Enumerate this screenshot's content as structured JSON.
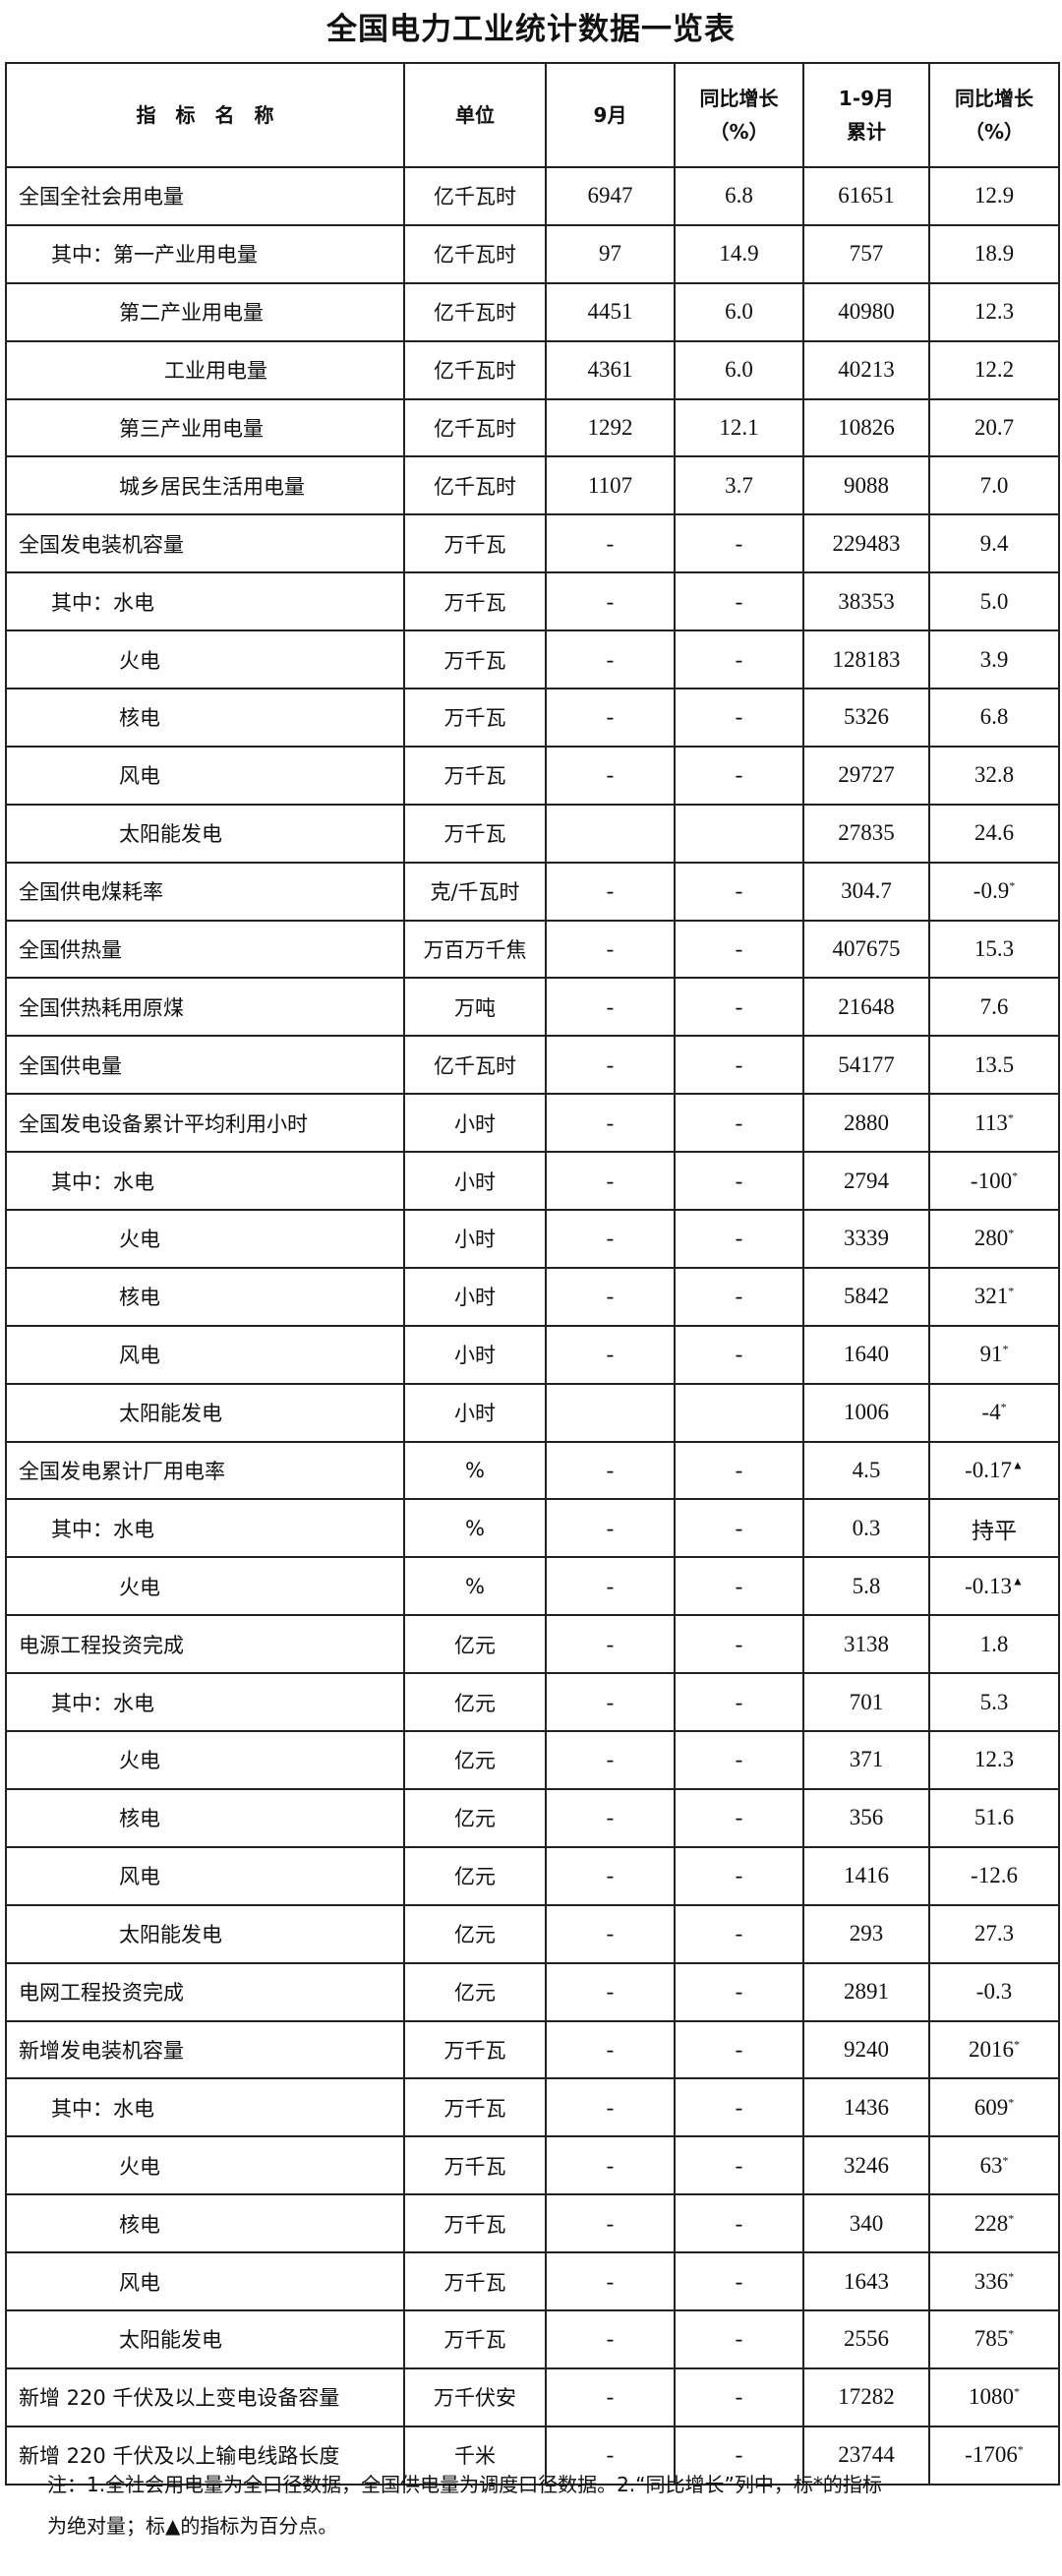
{
  "title": "全国电力工业统计数据一览表",
  "headers": {
    "name": "指　标　名　称",
    "unit": "单位",
    "month": "9月",
    "month_yoy_1": "同比增长",
    "month_yoy_2": "（%）",
    "cum_1": "1-9月",
    "cum_2": "累计",
    "cum_yoy_1": "同比增长",
    "cum_yoy_2": "（%）"
  },
  "rows": [
    {
      "name": "全国全社会用电量",
      "indent": 0,
      "unit": "亿千瓦时",
      "m": "6947",
      "my": "6.8",
      "c": "61651",
      "cy": "12.9",
      "mark": ""
    },
    {
      "name": "其中：第一产业用电量",
      "indent": 1,
      "unit": "亿千瓦时",
      "m": "97",
      "my": "14.9",
      "c": "757",
      "cy": "18.9",
      "mark": ""
    },
    {
      "name": "第二产业用电量",
      "indent": 2,
      "unit": "亿千瓦时",
      "m": "4451",
      "my": "6.0",
      "c": "40980",
      "cy": "12.3",
      "mark": ""
    },
    {
      "name": "工业用电量",
      "indent": 3,
      "unit": "亿千瓦时",
      "m": "4361",
      "my": "6.0",
      "c": "40213",
      "cy": "12.2",
      "mark": ""
    },
    {
      "name": "第三产业用电量",
      "indent": 2,
      "unit": "亿千瓦时",
      "m": "1292",
      "my": "12.1",
      "c": "10826",
      "cy": "20.7",
      "mark": ""
    },
    {
      "name": "城乡居民生活用电量",
      "indent": 2,
      "unit": "亿千瓦时",
      "m": "1107",
      "my": "3.7",
      "c": "9088",
      "cy": "7.0",
      "mark": ""
    },
    {
      "name": "全国发电装机容量",
      "indent": 0,
      "unit": "万千瓦",
      "m": "-",
      "my": "-",
      "c": "229483",
      "cy": "9.4",
      "mark": ""
    },
    {
      "name": "其中：水电",
      "indent": 1,
      "unit": "万千瓦",
      "m": "-",
      "my": "-",
      "c": "38353",
      "cy": "5.0",
      "mark": ""
    },
    {
      "name": "火电",
      "indent": 2,
      "unit": "万千瓦",
      "m": "-",
      "my": "-",
      "c": "128183",
      "cy": "3.9",
      "mark": ""
    },
    {
      "name": "核电",
      "indent": 2,
      "unit": "万千瓦",
      "m": "-",
      "my": "-",
      "c": "5326",
      "cy": "6.8",
      "mark": ""
    },
    {
      "name": "风电",
      "indent": 2,
      "unit": "万千瓦",
      "m": "-",
      "my": "-",
      "c": "29727",
      "cy": "32.8",
      "mark": ""
    },
    {
      "name": "太阳能发电",
      "indent": 2,
      "unit": "万千瓦",
      "m": "",
      "my": "",
      "c": "27835",
      "cy": "24.6",
      "mark": ""
    },
    {
      "name": "全国供电煤耗率",
      "indent": 0,
      "unit": "克/千瓦时",
      "m": "-",
      "my": "-",
      "c": "304.7",
      "cy": "-0.9",
      "mark": "*"
    },
    {
      "name": "全国供热量",
      "indent": 0,
      "unit": "万百万千焦",
      "m": "-",
      "my": "-",
      "c": "407675",
      "cy": "15.3",
      "mark": ""
    },
    {
      "name": "全国供热耗用原煤",
      "indent": 0,
      "unit": "万吨",
      "m": "-",
      "my": "-",
      "c": "21648",
      "cy": "7.6",
      "mark": ""
    },
    {
      "name": "全国供电量",
      "indent": 0,
      "unit": "亿千瓦时",
      "m": "-",
      "my": "-",
      "c": "54177",
      "cy": "13.5",
      "mark": ""
    },
    {
      "name": "全国发电设备累计平均利用小时",
      "indent": 0,
      "unit": "小时",
      "m": "-",
      "my": "-",
      "c": "2880",
      "cy": "113",
      "mark": "*"
    },
    {
      "name": "其中：水电",
      "indent": 1,
      "unit": "小时",
      "m": "-",
      "my": "-",
      "c": "2794",
      "cy": "-100",
      "mark": "*"
    },
    {
      "name": "火电",
      "indent": 2,
      "unit": "小时",
      "m": "-",
      "my": "-",
      "c": "3339",
      "cy": "280",
      "mark": "*"
    },
    {
      "name": "核电",
      "indent": 2,
      "unit": "小时",
      "m": "-",
      "my": "-",
      "c": "5842",
      "cy": "321",
      "mark": "*"
    },
    {
      "name": "风电",
      "indent": 2,
      "unit": "小时",
      "m": "-",
      "my": "-",
      "c": "1640",
      "cy": "91",
      "mark": "*"
    },
    {
      "name": "太阳能发电",
      "indent": 2,
      "unit": "小时",
      "m": "",
      "my": "",
      "c": "1006",
      "cy": "-4",
      "mark": "*"
    },
    {
      "name": "全国发电累计厂用电率",
      "indent": 0,
      "unit": "%",
      "m": "-",
      "my": "-",
      "c": "4.5",
      "cy": "-0.17",
      "mark": "▲"
    },
    {
      "name": "其中：水电",
      "indent": 1,
      "unit": "%",
      "m": "-",
      "my": "-",
      "c": "0.3",
      "cy": "持平",
      "mark": ""
    },
    {
      "name": "火电",
      "indent": 2,
      "unit": "%",
      "m": "-",
      "my": "-",
      "c": "5.8",
      "cy": "-0.13",
      "mark": "▲"
    },
    {
      "name": "电源工程投资完成",
      "indent": 0,
      "unit": "亿元",
      "m": "-",
      "my": "-",
      "c": "3138",
      "cy": "1.8",
      "mark": ""
    },
    {
      "name": "其中：水电",
      "indent": 1,
      "unit": "亿元",
      "m": "-",
      "my": "-",
      "c": "701",
      "cy": "5.3",
      "mark": ""
    },
    {
      "name": "火电",
      "indent": 2,
      "unit": "亿元",
      "m": "-",
      "my": "-",
      "c": "371",
      "cy": "12.3",
      "mark": ""
    },
    {
      "name": "核电",
      "indent": 2,
      "unit": "亿元",
      "m": "-",
      "my": "-",
      "c": "356",
      "cy": "51.6",
      "mark": ""
    },
    {
      "name": "风电",
      "indent": 2,
      "unit": "亿元",
      "m": "-",
      "my": "-",
      "c": "1416",
      "cy": "-12.6",
      "mark": ""
    },
    {
      "name": "太阳能发电",
      "indent": 2,
      "unit": "亿元",
      "m": "-",
      "my": "-",
      "c": "293",
      "cy": "27.3",
      "mark": ""
    },
    {
      "name": "电网工程投资完成",
      "indent": 0,
      "unit": "亿元",
      "m": "-",
      "my": "-",
      "c": "2891",
      "cy": "-0.3",
      "mark": ""
    },
    {
      "name": "新增发电装机容量",
      "indent": 0,
      "unit": "万千瓦",
      "m": "-",
      "my": "-",
      "c": "9240",
      "cy": "2016",
      "mark": "*"
    },
    {
      "name": "其中：水电",
      "indent": 1,
      "unit": "万千瓦",
      "m": "-",
      "my": "-",
      "c": "1436",
      "cy": "609",
      "mark": "*"
    },
    {
      "name": "火电",
      "indent": 2,
      "unit": "万千瓦",
      "m": "-",
      "my": "-",
      "c": "3246",
      "cy": "63",
      "mark": "*"
    },
    {
      "name": "核电",
      "indent": 2,
      "unit": "万千瓦",
      "m": "-",
      "my": "-",
      "c": "340",
      "cy": "228",
      "mark": "*"
    },
    {
      "name": "风电",
      "indent": 2,
      "unit": "万千瓦",
      "m": "-",
      "my": "-",
      "c": "1643",
      "cy": "336",
      "mark": "*"
    },
    {
      "name": "太阳能发电",
      "indent": 2,
      "unit": "万千瓦",
      "m": "-",
      "my": "-",
      "c": "2556",
      "cy": "785",
      "mark": "*"
    },
    {
      "name": "新增 220 千伏及以上变电设备容量",
      "indent": 0,
      "unit": "万千伏安",
      "m": "-",
      "my": "-",
      "c": "17282",
      "cy": "1080",
      "mark": "*"
    },
    {
      "name": "新增 220 千伏及以上输电线路长度",
      "indent": 0,
      "unit": "千米",
      "m": "-",
      "my": "-",
      "c": "23744",
      "cy": "-1706",
      "mark": "*"
    }
  ],
  "note": {
    "line1": "注：1.全社会用电量为全口径数据，全国供电量为调度口径数据。2.“同比增长”列中，标*的指标",
    "line2": "为绝对量；标▲的指标为百分点。"
  }
}
